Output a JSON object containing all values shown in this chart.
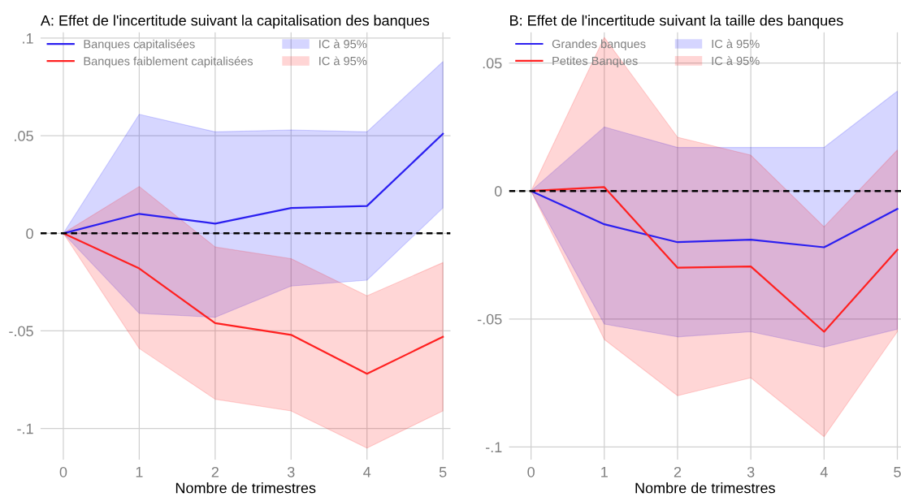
{
  "chart_data": [
    {
      "type": "line",
      "title": "A: Effet de l'incertitude suivant la capitalisation des banques",
      "xlabel": "Nombre de trimestres",
      "x": [
        0,
        1,
        2,
        3,
        4,
        5
      ],
      "xlim": [
        -0.3,
        5.1
      ],
      "xticks": [
        0,
        1,
        2,
        3,
        4,
        5
      ],
      "ylim": [
        -0.116,
        0.103
      ],
      "yticks": [
        {
          "value": 0.1,
          "label": ".1"
        },
        {
          "value": 0.05,
          "label": ".05"
        },
        {
          "value": 0,
          "label": "0"
        },
        {
          "value": -0.05,
          "label": "-.05"
        },
        {
          "value": -0.1,
          "label": "-.1"
        }
      ],
      "grid": true,
      "legend": "top left",
      "ref_lines": [
        {
          "axis": "y",
          "value": 0,
          "color": "#000000",
          "line_style": "dashed"
        }
      ],
      "series": [
        {
          "name": "Banques capitalisées",
          "type": "line",
          "color": "#2b1ff0",
          "values": [
            0,
            0.01,
            0.005,
            0.013,
            0.014,
            0.051
          ]
        },
        {
          "name": "Banques faiblement capitalisées",
          "type": "line",
          "color": "#ff2020",
          "values": [
            0,
            -0.018,
            -0.046,
            -0.052,
            -0.072,
            -0.053
          ]
        },
        {
          "name": "IC à 95%",
          "type": "area",
          "color": "#0000ff",
          "values": [
            null,
            null,
            null,
            null,
            null,
            null
          ],
          "lower": [
            0,
            -0.041,
            -0.043,
            -0.027,
            -0.024,
            0.013
          ],
          "upper": [
            0,
            0.061,
            0.052,
            0.053,
            0.052,
            0.088
          ]
        },
        {
          "name": "IC à 95%",
          "type": "area",
          "color": "#ff0000",
          "values": [
            null,
            null,
            null,
            null,
            null,
            null
          ],
          "lower": [
            0,
            -0.059,
            -0.085,
            -0.091,
            -0.11,
            -0.091
          ],
          "upper": [
            0,
            0.024,
            -0.007,
            -0.013,
            -0.032,
            -0.015
          ]
        }
      ]
    },
    {
      "type": "line",
      "title": "B: Effet de l'incertitude suivant la taille des banques",
      "xlabel": "Nombre de trimestres",
      "x": [
        0,
        1,
        2,
        3,
        4,
        5
      ],
      "xlim": [
        -0.3,
        5.05
      ],
      "xticks": [
        0,
        1,
        2,
        3,
        4,
        5
      ],
      "ylim": [
        -0.105,
        0.062
      ],
      "yticks": [
        {
          "value": 0.05,
          "label": ".05"
        },
        {
          "value": 0,
          "label": "0"
        },
        {
          "value": -0.05,
          "label": "-.05"
        },
        {
          "value": -0.1,
          "label": "-.1"
        }
      ],
      "grid": true,
      "legend": "top left",
      "ref_lines": [
        {
          "axis": "y",
          "value": 0,
          "color": "#000000",
          "line_style": "dashed"
        }
      ],
      "series": [
        {
          "name": "Grandes banques",
          "type": "line",
          "color": "#2b1ff0",
          "values": [
            0,
            -0.013,
            -0.02,
            -0.019,
            -0.022,
            -0.007
          ]
        },
        {
          "name": "Petites Banques",
          "type": "line",
          "color": "#ff2020",
          "values": [
            0,
            0.0015,
            -0.03,
            -0.0295,
            -0.055,
            -0.023
          ]
        },
        {
          "name": "IC à 95%",
          "type": "area",
          "color": "#0000ff",
          "values": [
            null,
            null,
            null,
            null,
            null,
            null
          ],
          "lower": [
            0,
            -0.052,
            -0.057,
            -0.055,
            -0.061,
            -0.054
          ],
          "upper": [
            0,
            0.025,
            0.017,
            0.017,
            0.017,
            0.039
          ]
        },
        {
          "name": "IC à 95%",
          "type": "area",
          "color": "#ff0000",
          "values": [
            null,
            null,
            null,
            null,
            null,
            null
          ],
          "lower": [
            0,
            -0.058,
            -0.08,
            -0.073,
            -0.096,
            -0.055
          ],
          "upper": [
            0,
            0.06,
            0.021,
            0.014,
            -0.014,
            0.016
          ]
        }
      ]
    }
  ]
}
